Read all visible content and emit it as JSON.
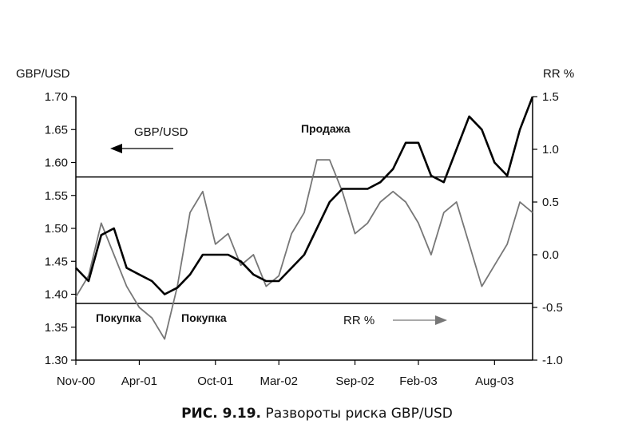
{
  "chart_data": {
    "type": "line",
    "title": "",
    "left_axis_label": "GBP/USD",
    "right_axis_label": "RR %",
    "left_ylim": [
      1.3,
      1.7
    ],
    "left_ticks": [
      "1.70",
      "1.65",
      "1.60",
      "1.55",
      "1.50",
      "1.45",
      "1.40",
      "1.35",
      "1.30"
    ],
    "right_ylim": [
      -1.0,
      1.5
    ],
    "right_ticks": [
      "1.5",
      "1.0",
      "0.5",
      "0.0",
      "-0.5",
      "-1.0"
    ],
    "x_ticks": [
      "Nov-00",
      "Apr-01",
      "Oct-01",
      "Mar-02",
      "Sep-02",
      "Feb-03",
      "Aug-03"
    ],
    "x_range": [
      "Nov-00",
      "Nov-03"
    ],
    "series": [
      {
        "name": "GBP/USD",
        "axis": "left",
        "color": "#000000",
        "points": [
          [
            "Nov-00",
            1.44
          ],
          [
            "Dec-00",
            1.42
          ],
          [
            "Jan-01",
            1.49
          ],
          [
            "Feb-01",
            1.5
          ],
          [
            "Mar-01",
            1.44
          ],
          [
            "Apr-01",
            1.43
          ],
          [
            "May-01",
            1.42
          ],
          [
            "Jun-01",
            1.4
          ],
          [
            "Jul-01",
            1.41
          ],
          [
            "Aug-01",
            1.43
          ],
          [
            "Sep-01",
            1.46
          ],
          [
            "Oct-01",
            1.46
          ],
          [
            "Nov-01",
            1.46
          ],
          [
            "Dec-01",
            1.45
          ],
          [
            "Jan-02",
            1.43
          ],
          [
            "Feb-02",
            1.42
          ],
          [
            "Mar-02",
            1.42
          ],
          [
            "Apr-02",
            1.44
          ],
          [
            "May-02",
            1.46
          ],
          [
            "Jun-02",
            1.5
          ],
          [
            "Jul-02",
            1.54
          ],
          [
            "Aug-02",
            1.56
          ],
          [
            "Sep-02",
            1.56
          ],
          [
            "Oct-02",
            1.56
          ],
          [
            "Nov-02",
            1.57
          ],
          [
            "Dec-02",
            1.59
          ],
          [
            "Jan-03",
            1.63
          ],
          [
            "Feb-03",
            1.63
          ],
          [
            "Mar-03",
            1.58
          ],
          [
            "Apr-03",
            1.57
          ],
          [
            "May-03",
            1.62
          ],
          [
            "Jun-03",
            1.67
          ],
          [
            "Jul-03",
            1.65
          ],
          [
            "Aug-03",
            1.6
          ],
          [
            "Sep-03",
            1.58
          ],
          [
            "Oct-03",
            1.65
          ],
          [
            "Nov-03",
            1.7
          ]
        ]
      },
      {
        "name": "RR %",
        "axis": "right",
        "color": "#777777",
        "points": [
          [
            "Nov-00",
            -0.4
          ],
          [
            "Dec-00",
            -0.2
          ],
          [
            "Jan-01",
            0.3
          ],
          [
            "Feb-01",
            0.0
          ],
          [
            "Mar-01",
            -0.3
          ],
          [
            "Apr-01",
            -0.5
          ],
          [
            "May-01",
            -0.6
          ],
          [
            "Jun-01",
            -0.8
          ],
          [
            "Jul-01",
            -0.3
          ],
          [
            "Aug-01",
            0.4
          ],
          [
            "Sep-01",
            0.6
          ],
          [
            "Oct-01",
            0.1
          ],
          [
            "Nov-01",
            0.2
          ],
          [
            "Dec-01",
            -0.1
          ],
          [
            "Jan-02",
            0.0
          ],
          [
            "Feb-02",
            -0.3
          ],
          [
            "Mar-02",
            -0.2
          ],
          [
            "Apr-02",
            0.2
          ],
          [
            "May-02",
            0.4
          ],
          [
            "Jun-02",
            0.9
          ],
          [
            "Jul-02",
            0.9
          ],
          [
            "Aug-02",
            0.6
          ],
          [
            "Sep-02",
            0.2
          ],
          [
            "Oct-02",
            0.3
          ],
          [
            "Nov-02",
            0.5
          ],
          [
            "Dec-02",
            0.6
          ],
          [
            "Jan-03",
            0.5
          ],
          [
            "Feb-03",
            0.3
          ],
          [
            "Mar-03",
            0.0
          ],
          [
            "Apr-03",
            0.4
          ],
          [
            "May-03",
            0.5
          ],
          [
            "Jun-03",
            0.1
          ],
          [
            "Jul-03",
            -0.3
          ],
          [
            "Aug-03",
            -0.1
          ],
          [
            "Sep-03",
            0.1
          ],
          [
            "Oct-03",
            0.5
          ],
          [
            "Nov-03",
            0.4
          ]
        ]
      }
    ],
    "reference_lines": [
      {
        "axis": "left",
        "value": 1.578
      },
      {
        "axis": "left",
        "value": 1.386
      }
    ],
    "annotations": {
      "gbp_label": "GBP/USD",
      "rr_label": "RR %",
      "sell": "Продажа",
      "buy_1": "Покупка",
      "buy_2": "Покупка"
    },
    "grid": false
  },
  "caption": {
    "figure_number": "РИС. 9.19.",
    "text": "Развороты риска GBP/USD"
  }
}
